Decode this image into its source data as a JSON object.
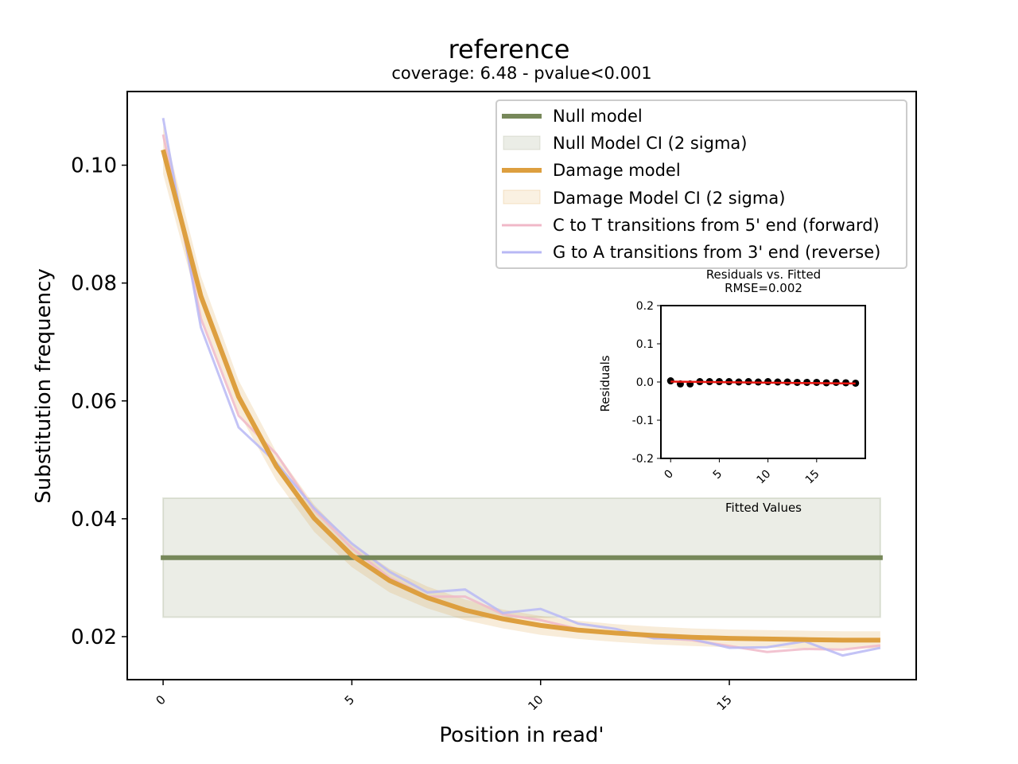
{
  "chart_data": [
    {
      "type": "line",
      "title": "reference",
      "subtitle": "coverage: 6.48 - pvalue<0.001",
      "xlabel": "Position in read'",
      "ylabel": "Substitution frequency",
      "xlim": [
        -0.95,
        19.95
      ],
      "ylim": [
        0.0127,
        0.1125
      ],
      "x_ticks": [
        0,
        5,
        10,
        15
      ],
      "y_ticks": [
        0.02,
        0.04,
        0.06,
        0.08,
        0.1
      ],
      "y_tick_labels": [
        "0.02",
        "0.04",
        "0.06",
        "0.08",
        "0.10"
      ],
      "legend_position": "top-right",
      "x": [
        0,
        1,
        2,
        3,
        4,
        5,
        6,
        7,
        8,
        9,
        10,
        11,
        12,
        13,
        14,
        15,
        16,
        17,
        18,
        19
      ],
      "null_model": {
        "name": "Null model",
        "ci_name": "Null Model CI (2 sigma)",
        "value": 0.0334,
        "ci": [
          0.0233,
          0.0435
        ],
        "color": "#77885a"
      },
      "damage_model": {
        "name": "Damage model",
        "ci_name": "Damage Model CI (2 sigma)",
        "color": "#dd9f3f",
        "values": [
          0.1026,
          0.0778,
          0.0607,
          0.0489,
          0.0401,
          0.0338,
          0.0295,
          0.0266,
          0.0245,
          0.023,
          0.0219,
          0.0211,
          0.0206,
          0.0202,
          0.0199,
          0.0197,
          0.0196,
          0.0195,
          0.0194,
          0.0194
        ],
        "ci_lower": [
          0.0985,
          0.0745,
          0.058,
          0.0465,
          0.0378,
          0.0318,
          0.0275,
          0.0248,
          0.0228,
          0.0214,
          0.0203,
          0.0196,
          0.0191,
          0.0187,
          0.0184,
          0.0182,
          0.0181,
          0.018,
          0.018,
          0.018
        ],
        "ci_upper": [
          0.1067,
          0.0812,
          0.0635,
          0.0513,
          0.0424,
          0.0358,
          0.0315,
          0.0285,
          0.0263,
          0.0246,
          0.0235,
          0.0227,
          0.0221,
          0.0217,
          0.0214,
          0.0212,
          0.0211,
          0.021,
          0.0209,
          0.0209
        ]
      },
      "series": [
        {
          "name": "C to T transitions from 5' end (forward)",
          "color": "#f0b8c8",
          "values": [
            0.1052,
            0.074,
            0.0575,
            0.051,
            0.0415,
            0.035,
            0.03,
            0.0268,
            0.0268,
            0.0238,
            0.0228,
            0.0213,
            0.0207,
            0.0198,
            0.0194,
            0.0184,
            0.0174,
            0.0179,
            0.0178,
            0.0185
          ]
        },
        {
          "name": "G to A transitions from 3' end (reverse)",
          "color": "#b8b8f4",
          "values": [
            0.108,
            0.0725,
            0.0555,
            0.0495,
            0.0418,
            0.0358,
            0.031,
            0.0275,
            0.028,
            0.024,
            0.0247,
            0.0222,
            0.0213,
            0.0197,
            0.0196,
            0.0181,
            0.0182,
            0.0192,
            0.0168,
            0.0181
          ]
        }
      ]
    },
    {
      "type": "scatter",
      "title": "Residuals vs. Fitted",
      "subtitle": "RMSE=0.002",
      "xlabel": "Fitted Values",
      "ylabel": "Residuals",
      "xlim": [
        -1,
        20
      ],
      "ylim": [
        -0.2,
        0.2
      ],
      "x_ticks": [
        0,
        5,
        10,
        15
      ],
      "y_ticks": [
        -0.2,
        -0.1,
        0.0,
        0.1,
        0.2
      ],
      "y_tick_labels": [
        "-0.2",
        "-0.1",
        "0.0",
        "0.1",
        "0.2"
      ],
      "x": [
        0,
        1,
        2,
        3,
        4,
        5,
        6,
        7,
        8,
        9,
        10,
        11,
        12,
        13,
        14,
        15,
        16,
        17,
        18,
        19
      ],
      "values": [
        0.003,
        -0.005,
        -0.005,
        0.001,
        0.001,
        0.001,
        0.001,
        0.0,
        0.001,
        0.0,
        0.001,
        0.0,
        0.0,
        -0.001,
        -0.001,
        -0.001,
        -0.002,
        -0.001,
        -0.002,
        -0.003
      ],
      "trend": [
        0.001,
        -0.004
      ]
    }
  ]
}
